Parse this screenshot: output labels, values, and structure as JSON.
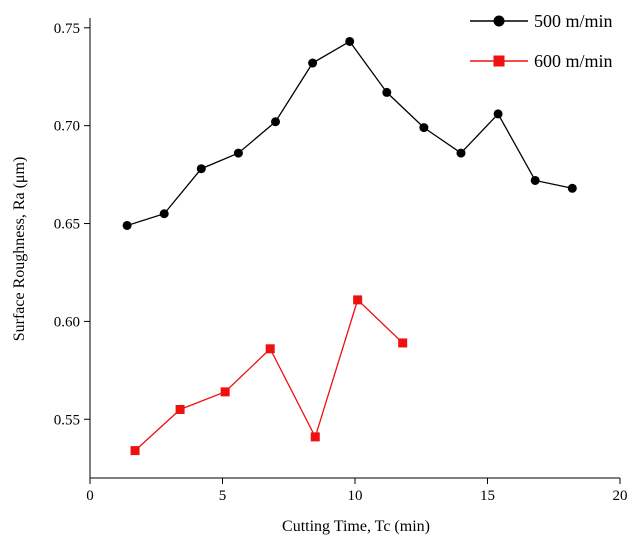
{
  "chart_data": {
    "type": "line",
    "xlabel": "Cutting Time, Tc (min)",
    "ylabel": "Surface Roughness, Ra (μm)",
    "xlim": [
      0,
      20
    ],
    "ylim": [
      0.52,
      0.755
    ],
    "x_ticks": [
      "0",
      "5",
      "10",
      "15",
      "20"
    ],
    "y_ticks": [
      "0.55",
      "0.60",
      "0.65",
      "0.70",
      "0.75"
    ],
    "grid": false,
    "legend_position": "top-right",
    "series": [
      {
        "name": "500 m/min",
        "color": "#000000",
        "marker": "circle",
        "x": [
          1.4,
          2.8,
          4.2,
          5.6,
          7.0,
          8.4,
          9.8,
          11.2,
          12.6,
          14.0,
          15.4,
          16.8,
          18.2
        ],
        "y": [
          0.649,
          0.655,
          0.678,
          0.686,
          0.702,
          0.732,
          0.743,
          0.717,
          0.699,
          0.686,
          0.706,
          0.672,
          0.668
        ]
      },
      {
        "name": "600 m/min",
        "color": "#ee1111",
        "marker": "square",
        "x": [
          1.7,
          3.4,
          5.1,
          6.8,
          8.5,
          10.1,
          11.8
        ],
        "y": [
          0.534,
          0.555,
          0.564,
          0.586,
          0.541,
          0.611,
          0.589
        ]
      }
    ]
  }
}
